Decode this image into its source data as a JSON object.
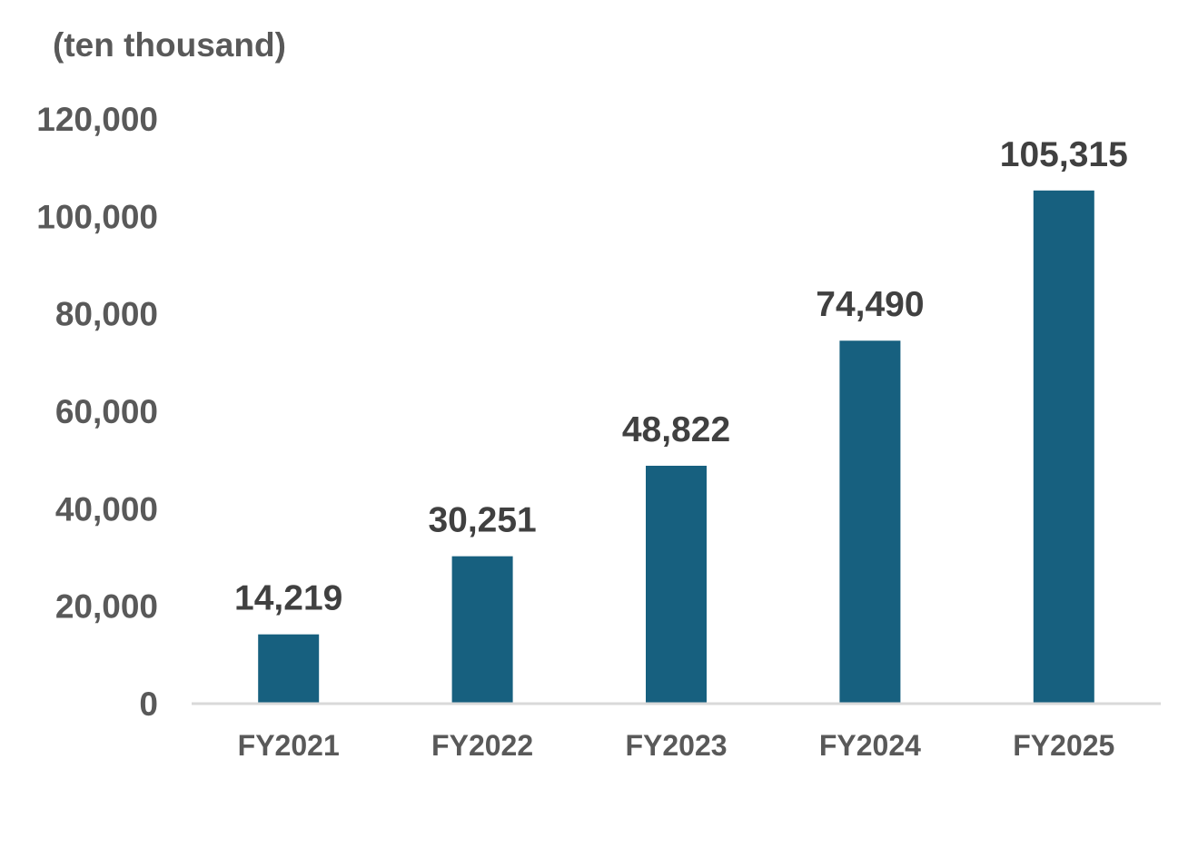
{
  "chart_data": {
    "type": "bar",
    "unit_label": "(ten thousand)",
    "categories": [
      "FY2021",
      "FY2022",
      "FY2023",
      "FY2024",
      "FY2025"
    ],
    "values": [
      14219,
      30251,
      48822,
      74490,
      105315
    ],
    "data_labels": [
      "14,219",
      "30,251",
      "48,822",
      "74,490",
      "105,315"
    ],
    "yticks": [
      0,
      20000,
      40000,
      60000,
      80000,
      100000,
      120000
    ],
    "ytick_labels": [
      "0",
      "20,000",
      "40,000",
      "60,000",
      "80,000",
      "100,000",
      "120,000"
    ],
    "ylim": [
      0,
      120000
    ],
    "grid": false,
    "bar_color": "#17607f",
    "axis_color": "#d9d9d9",
    "title": "",
    "xlabel": "",
    "ylabel": ""
  }
}
